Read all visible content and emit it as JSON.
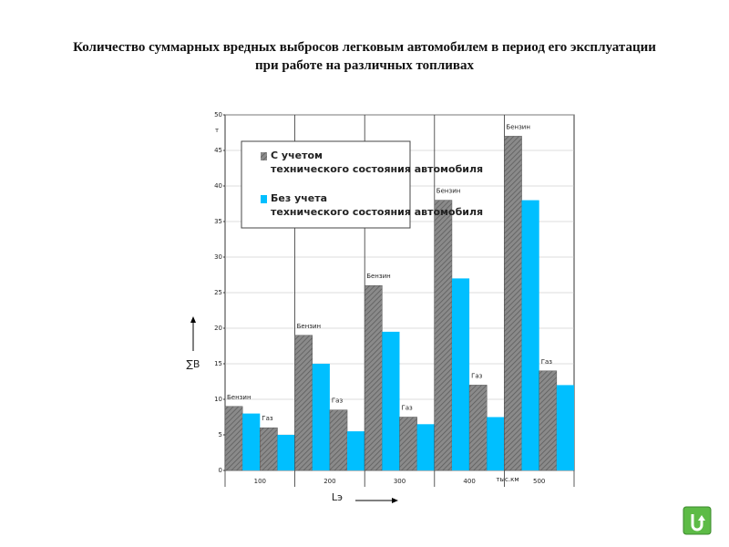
{
  "chart_data": {
    "type": "bar",
    "title": "Количество суммарных вредных выбросов легковым автомобилем в период его эксплуатации при работе на различных топливах",
    "y_label": "∑B",
    "y_unit": "т",
    "x_label": "Lэ",
    "x_unit": "тыс.км",
    "categories": [
      "100",
      "200",
      "300",
      "400",
      "500"
    ],
    "subcategories": [
      "Бензин",
      "Газ"
    ],
    "series": [
      {
        "name": "С учетом технического состояния автомобиля",
        "color": "#8a8a8a",
        "hatched": true,
        "values": [
          [
            9,
            6
          ],
          [
            19,
            8.5
          ],
          [
            26,
            7.5
          ],
          [
            38,
            12
          ],
          [
            47,
            14
          ]
        ]
      },
      {
        "name": "Без учета технического состояния автомобиля",
        "color": "#00bfff",
        "hatched": false,
        "values": [
          [
            8,
            5
          ],
          [
            15,
            5.5
          ],
          [
            19.5,
            6.5
          ],
          [
            27,
            7.5
          ],
          [
            38,
            12
          ]
        ]
      }
    ],
    "ylim": [
      0,
      50
    ],
    "yticks": [
      0,
      5,
      10,
      15,
      20,
      25,
      30,
      35,
      40,
      45,
      50
    ],
    "grid": true
  }
}
